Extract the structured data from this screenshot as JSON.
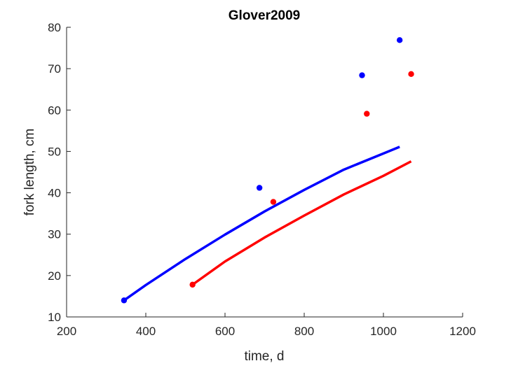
{
  "chart_data": {
    "type": "scatter",
    "title": "Glover2009",
    "xlabel": "time, d",
    "ylabel": "fork length, cm",
    "xlim": [
      200,
      1200
    ],
    "ylim": [
      10,
      80
    ],
    "xticks": [
      200,
      400,
      600,
      800,
      1000,
      1200
    ],
    "yticks": [
      10,
      20,
      30,
      40,
      50,
      60,
      70,
      80
    ],
    "xtick_labels": [
      "200",
      "400",
      "600",
      "800",
      "1000",
      "1200"
    ],
    "ytick_labels": [
      "10",
      "20",
      "30",
      "40",
      "50",
      "60",
      "70",
      "80"
    ],
    "grid": false,
    "series": [
      {
        "color": "#0000ff",
        "kind": "points",
        "points": [
          [
            345,
            14.0
          ],
          [
            687,
            41.2
          ],
          [
            946,
            68.4
          ],
          [
            1041,
            76.9
          ]
        ]
      },
      {
        "color": "#ff0000",
        "kind": "points",
        "points": [
          [
            518,
            17.8
          ],
          [
            722,
            37.8
          ],
          [
            958,
            59.1
          ],
          [
            1070,
            68.7
          ]
        ]
      },
      {
        "color": "#0000ff",
        "kind": "line",
        "points": [
          [
            345,
            14.0
          ],
          [
            400,
            17.7
          ],
          [
            500,
            24.0
          ],
          [
            600,
            29.9
          ],
          [
            700,
            35.5
          ],
          [
            800,
            40.7
          ],
          [
            900,
            45.6
          ],
          [
            1000,
            49.5
          ],
          [
            1041,
            51.1
          ]
        ]
      },
      {
        "color": "#ff0000",
        "kind": "line",
        "points": [
          [
            518,
            17.8
          ],
          [
            600,
            23.4
          ],
          [
            700,
            29.2
          ],
          [
            800,
            34.5
          ],
          [
            900,
            39.6
          ],
          [
            1000,
            44.1
          ],
          [
            1070,
            47.6
          ]
        ]
      }
    ]
  }
}
